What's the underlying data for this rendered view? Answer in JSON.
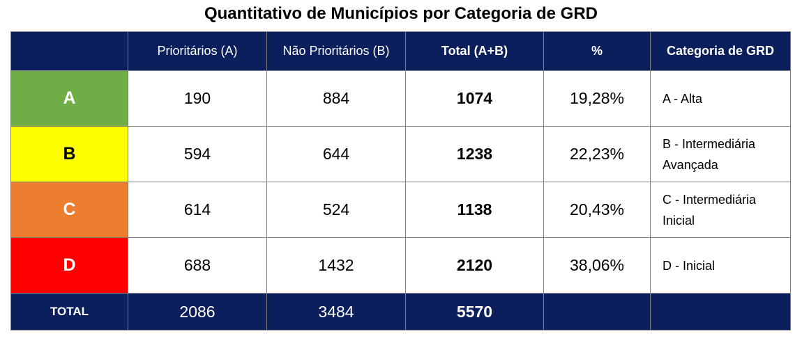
{
  "title": "Quantitativo de Municípios por Categoria de GRD",
  "headers": [
    "",
    "Prioritários (A)",
    "Não Prioritários (B)",
    "Total (A+B)",
    "%",
    "Categoria de GRD"
  ],
  "rows": [
    {
      "cat": "A",
      "color": "#70ad47",
      "textColor": "#ffffff",
      "a": "190",
      "b": "884",
      "total": "1074",
      "pct": "19,28%",
      "desc1": "A - Alta",
      "desc2": ""
    },
    {
      "cat": "B",
      "color": "#ffff00",
      "textColor": "#000000",
      "a": "594",
      "b": "644",
      "total": "1238",
      "pct": "22,23%",
      "desc1": "B - Intermediária",
      "desc2": "Avançada"
    },
    {
      "cat": "C",
      "color": "#ed7d31",
      "textColor": "#ffffff",
      "a": "614",
      "b": "524",
      "total": "1138",
      "pct": "20,43%",
      "desc1": "C - Intermediária",
      "desc2": "Inicial"
    },
    {
      "cat": "D",
      "color": "#ff0000",
      "textColor": "#ffffff",
      "a": "688",
      "b": "1432",
      "total": "2120",
      "pct": "38,06%",
      "desc1": "D - Inicial",
      "desc2": ""
    }
  ],
  "footer": {
    "label": "TOTAL",
    "a": "2086",
    "b": "3484",
    "total": "5570",
    "pct": "",
    "desc": ""
  },
  "colors": {
    "header_bg": "#0b1f5c"
  }
}
